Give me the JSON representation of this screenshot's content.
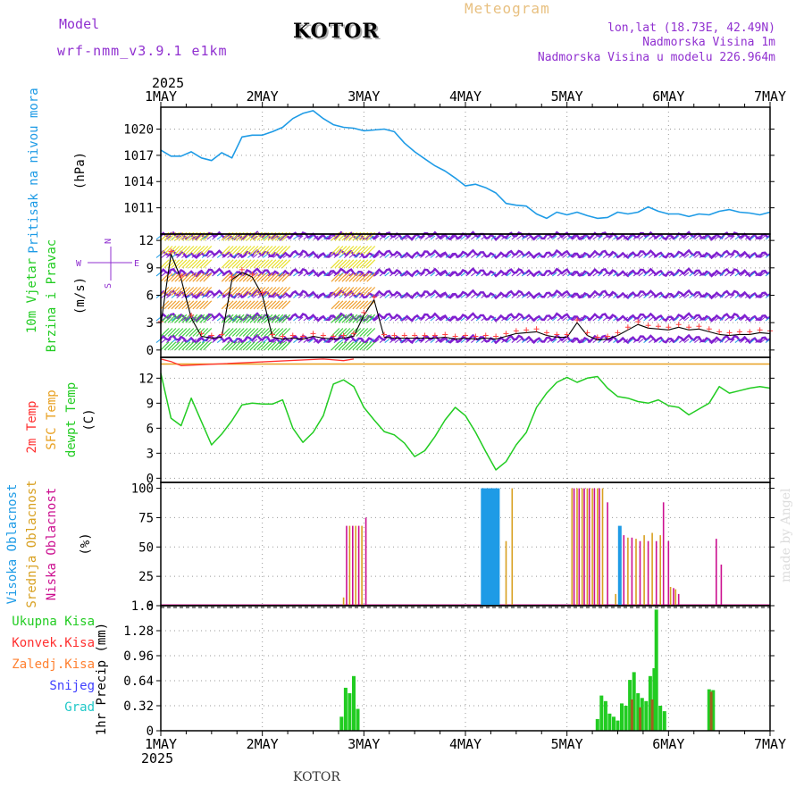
{
  "header": {
    "model_label": "Model",
    "model_value": "wrf-nmm_v3.9.1  e1km",
    "title": "KOTOR",
    "meteogram": "Meteogram",
    "lonlat": "lon,lat (18.73E, 42.49N)",
    "elevation": "Nadmorska Visina 1m",
    "model_elevation": "Nadmorska Visina u modelu 226.964m",
    "year_top": "2025",
    "year_bottom": "2025",
    "footer": "KOTOR",
    "credit": "made by Angel"
  },
  "colors": {
    "pressure": "#1e9be6",
    "temp_2m": "#ff3030",
    "temp_sfc": "#e8a020",
    "dewpoint": "#22cc22",
    "cloud_high": "#1e9be6",
    "cloud_mid": "#d8a020",
    "cloud_low": "#cc1090",
    "precip_total": "#22cc22",
    "precip_conv": "#ff3030",
    "precip_frozen": "#ff8030",
    "precip_snow": "#4040ff",
    "precip_graupel": "#20c8c8",
    "wind_isotach": "#8020d0",
    "title_purple": "#9030d0",
    "meteogram_orange": "#e8c080"
  },
  "chart_data": [
    {
      "type": "line",
      "panel": "pressure",
      "ylabel_series": "Pritisak na nivou mora",
      "ylabel_unit": "(hPa)",
      "ylim": [
        1008,
        1022.5
      ],
      "yticks": [
        "1011",
        "1014",
        "1017",
        "1020"
      ],
      "x": [
        0,
        0.1,
        0.2,
        0.3,
        0.4,
        0.5,
        0.6,
        0.7,
        0.8,
        0.9,
        1.0,
        1.1,
        1.2,
        1.3,
        1.4,
        1.5,
        1.6,
        1.7,
        1.8,
        1.9,
        2.0,
        2.1,
        2.2,
        2.3,
        2.4,
        2.5,
        2.6,
        2.7,
        2.8,
        2.9,
        3.0,
        3.1,
        3.2,
        3.3,
        3.4,
        3.5,
        3.6,
        3.7,
        3.8,
        3.9,
        4.0,
        4.1,
        4.2,
        4.3,
        4.4,
        4.5,
        4.6,
        4.7,
        4.8,
        4.9,
        5.0,
        5.1,
        5.2,
        5.3,
        5.4,
        5.5,
        5.6,
        5.7,
        5.8,
        5.9,
        6.0
      ],
      "values": [
        1017.6,
        1016.9,
        1016.9,
        1017.4,
        1016.7,
        1016.4,
        1017.3,
        1016.7,
        1019.1,
        1019.3,
        1019.3,
        1019.7,
        1020.2,
        1021.2,
        1021.8,
        1022.1,
        1021.2,
        1020.5,
        1020.2,
        1020.1,
        1019.8,
        1019.9,
        1020.0,
        1019.7,
        1018.4,
        1017.4,
        1016.6,
        1015.8,
        1015.2,
        1014.4,
        1013.5,
        1013.7,
        1013.3,
        1012.7,
        1011.5,
        1011.3,
        1011.2,
        1010.3,
        1009.8,
        1010.5,
        1010.2,
        1010.5,
        1010.1,
        1009.8,
        1009.9,
        1010.5,
        1010.3,
        1010.5,
        1011.1,
        1010.6,
        1010.3,
        1010.3,
        1010.0,
        1010.3,
        1010.2,
        1010.6,
        1010.8,
        1010.5,
        1010.4,
        1010.2,
        1010.5
      ]
    },
    {
      "type": "line",
      "panel": "wind",
      "ylabel_series_1": "10m Vjetar",
      "ylabel_series_2": "Brzina i Pravac",
      "ylabel_unit": "(m/s)",
      "compass_n": "N",
      "compass_s": "S",
      "compass_w": "W",
      "compass_e": "E",
      "ylim": [
        -0.8,
        12.7
      ],
      "yticks": [
        "0",
        "3",
        "6",
        "9",
        "12"
      ],
      "isotach_levels": [
        1.2,
        3.6,
        6.1,
        8.5,
        10.5,
        12.5
      ],
      "x": [
        0,
        0.1,
        0.2,
        0.3,
        0.4,
        0.5,
        0.6,
        0.7,
        0.8,
        0.9,
        1.0,
        1.1,
        1.2,
        1.3,
        1.4,
        1.5,
        1.6,
        1.7,
        1.8,
        1.9,
        2.0,
        2.1,
        2.2,
        2.3,
        2.4,
        2.5,
        2.6,
        2.7,
        2.8,
        2.9,
        3.0,
        3.1,
        3.2,
        3.3,
        3.4,
        3.5,
        3.6,
        3.7,
        3.8,
        3.9,
        4.0,
        4.1,
        4.2,
        4.3,
        4.4,
        4.5,
        4.6,
        4.7,
        4.8,
        4.9,
        5.0,
        5.1,
        5.2,
        5.3,
        5.4,
        5.5,
        5.6,
        5.7,
        5.8,
        5.9,
        6.0
      ],
      "speed": [
        2.8,
        10.5,
        7.8,
        3.5,
        1.5,
        1.3,
        1.4,
        7.7,
        8.5,
        8.0,
        6.0,
        1.4,
        1.2,
        1.3,
        1.2,
        1.5,
        1.3,
        1.2,
        1.3,
        1.5,
        3.8,
        5.5,
        1.4,
        1.3,
        1.3,
        1.3,
        1.3,
        1.3,
        1.4,
        1.2,
        1.3,
        1.2,
        1.3,
        1.2,
        1.5,
        1.8,
        1.9,
        2.0,
        1.6,
        1.4,
        1.4,
        3.0,
        1.6,
        1.1,
        1.2,
        1.6,
        2.2,
        2.8,
        2.4,
        2.3,
        2.2,
        2.5,
        2.2,
        2.3,
        2.0,
        1.7,
        1.6,
        1.7,
        1.7,
        1.9,
        1.8
      ]
    },
    {
      "type": "line",
      "panel": "temperature",
      "ylabel_series_1": "2m Temp",
      "ylabel_series_2": "SFC Temp",
      "ylabel_series_3": "dewpt Temp",
      "ylabel_unit": "(C)",
      "ylim": [
        -0.5,
        14.5
      ],
      "yticks": [
        "0",
        "3",
        "6",
        "9",
        "12"
      ],
      "sfc_temp": 13.7,
      "t2m_x": [
        0,
        0.1,
        0.2,
        1.6,
        1.8,
        1.9
      ],
      "t2m_values": [
        14.3,
        14.0,
        13.5,
        14.3,
        14.1,
        14.3
      ],
      "x": [
        0,
        0.1,
        0.2,
        0.3,
        0.4,
        0.5,
        0.6,
        0.7,
        0.8,
        0.9,
        1.0,
        1.1,
        1.2,
        1.3,
        1.4,
        1.5,
        1.6,
        1.7,
        1.8,
        1.9,
        2.0,
        2.1,
        2.2,
        2.3,
        2.4,
        2.5,
        2.6,
        2.7,
        2.8,
        2.9,
        3.0,
        3.1,
        3.2,
        3.3,
        3.4,
        3.5,
        3.6,
        3.7,
        3.8,
        3.9,
        4.0,
        4.1,
        4.2,
        4.3,
        4.4,
        4.5,
        4.6,
        4.7,
        4.8,
        4.9,
        5.0,
        5.1,
        5.2,
        5.3,
        5.4,
        5.5,
        5.6,
        5.7,
        5.8,
        5.9,
        6.0
      ],
      "values": [
        12.6,
        7.2,
        6.3,
        9.6,
        6.8,
        4.0,
        5.3,
        6.9,
        8.8,
        9.0,
        8.9,
        8.9,
        9.4,
        6.0,
        4.3,
        5.5,
        7.5,
        11.3,
        11.8,
        11.0,
        8.5,
        7.0,
        5.6,
        5.2,
        4.2,
        2.6,
        3.3,
        5.0,
        7.0,
        8.5,
        7.5,
        5.5,
        3.2,
        1.0,
        2.0,
        4.0,
        5.5,
        8.5,
        10.2,
        11.5,
        12.1,
        11.5,
        12.0,
        12.2,
        10.8,
        9.8,
        9.6,
        9.2,
        9.0,
        9.4,
        8.7,
        8.5,
        7.6,
        8.3,
        9.0,
        11.0,
        10.2,
        10.5,
        10.8,
        11.0,
        10.8
      ]
    },
    {
      "type": "bar",
      "panel": "cloud",
      "ylabel_series_1": "Visoka Oblacnost",
      "ylabel_series_2": "Srednja Oblacnost",
      "ylabel_series_3": "Niska Oblacnost",
      "ylabel_unit": "(%)",
      "ylim": [
        0,
        105
      ],
      "yticks": [
        "0",
        "25",
        "50",
        "75",
        "100"
      ],
      "high": [
        {
          "x": 3.17,
          "v": 100
        },
        {
          "x": 3.2,
          "v": 100
        },
        {
          "x": 3.23,
          "v": 100
        },
        {
          "x": 3.26,
          "v": 100
        },
        {
          "x": 3.29,
          "v": 100
        },
        {
          "x": 3.32,
          "v": 100
        },
        {
          "x": 4.52,
          "v": 68
        }
      ],
      "mid": [
        {
          "x": 1.8,
          "v": 7
        },
        {
          "x": 1.86,
          "v": 68
        },
        {
          "x": 1.92,
          "v": 68
        },
        {
          "x": 1.98,
          "v": 68
        },
        {
          "x": 3.4,
          "v": 55
        },
        {
          "x": 3.46,
          "v": 100
        },
        {
          "x": 4.05,
          "v": 100
        },
        {
          "x": 4.1,
          "v": 100
        },
        {
          "x": 4.15,
          "v": 100
        },
        {
          "x": 4.2,
          "v": 100
        },
        {
          "x": 4.25,
          "v": 100
        },
        {
          "x": 4.3,
          "v": 100
        },
        {
          "x": 4.35,
          "v": 100
        },
        {
          "x": 4.48,
          "v": 10
        },
        {
          "x": 4.6,
          "v": 58
        },
        {
          "x": 4.68,
          "v": 57
        },
        {
          "x": 4.76,
          "v": 60
        },
        {
          "x": 4.84,
          "v": 62
        },
        {
          "x": 4.92,
          "v": 60
        },
        {
          "x": 5.02,
          "v": 16
        },
        {
          "x": 5.07,
          "v": 14
        }
      ],
      "low": [
        {
          "x": 1.83,
          "v": 68
        },
        {
          "x": 1.89,
          "v": 68
        },
        {
          "x": 1.95,
          "v": 68
        },
        {
          "x": 2.02,
          "v": 75
        },
        {
          "x": 4.07,
          "v": 100
        },
        {
          "x": 4.12,
          "v": 100
        },
        {
          "x": 4.17,
          "v": 100
        },
        {
          "x": 4.22,
          "v": 100
        },
        {
          "x": 4.27,
          "v": 100
        },
        {
          "x": 4.32,
          "v": 100
        },
        {
          "x": 4.4,
          "v": 88
        },
        {
          "x": 4.56,
          "v": 60
        },
        {
          "x": 4.64,
          "v": 58
        },
        {
          "x": 4.72,
          "v": 55
        },
        {
          "x": 4.8,
          "v": 55
        },
        {
          "x": 4.88,
          "v": 55
        },
        {
          "x": 4.95,
          "v": 88
        },
        {
          "x": 5.0,
          "v": 55
        },
        {
          "x": 5.05,
          "v": 15
        },
        {
          "x": 5.1,
          "v": 10
        },
        {
          "x": 5.47,
          "v": 57
        },
        {
          "x": 5.52,
          "v": 35
        }
      ]
    },
    {
      "type": "bar",
      "panel": "precipitation",
      "legend": [
        "Ukupna Kisa",
        "Konvek.Kisa",
        "Zaledj.Kisa",
        "Snijeg",
        "Grad"
      ],
      "ylabel": "1hr Precip (mm)",
      "ylim": [
        0,
        1.6
      ],
      "yticks": [
        "0",
        "0.32",
        "0.64",
        "0.96",
        "1.28",
        "1.6"
      ],
      "total": [
        {
          "x": 1.78,
          "v": 0.18
        },
        {
          "x": 1.82,
          "v": 0.55
        },
        {
          "x": 1.86,
          "v": 0.48
        },
        {
          "x": 1.9,
          "v": 0.7
        },
        {
          "x": 1.94,
          "v": 0.28
        },
        {
          "x": 4.3,
          "v": 0.15
        },
        {
          "x": 4.34,
          "v": 0.45
        },
        {
          "x": 4.38,
          "v": 0.38
        },
        {
          "x": 4.42,
          "v": 0.22
        },
        {
          "x": 4.46,
          "v": 0.18
        },
        {
          "x": 4.5,
          "v": 0.13
        },
        {
          "x": 4.54,
          "v": 0.35
        },
        {
          "x": 4.58,
          "v": 0.32
        },
        {
          "x": 4.62,
          "v": 0.65
        },
        {
          "x": 4.66,
          "v": 0.75
        },
        {
          "x": 4.7,
          "v": 0.48
        },
        {
          "x": 4.74,
          "v": 0.42
        },
        {
          "x": 4.78,
          "v": 0.38
        },
        {
          "x": 4.82,
          "v": 0.7
        },
        {
          "x": 4.86,
          "v": 0.8
        },
        {
          "x": 4.88,
          "v": 1.55
        },
        {
          "x": 4.92,
          "v": 0.32
        },
        {
          "x": 4.96,
          "v": 0.25
        },
        {
          "x": 5.4,
          "v": 0.53
        },
        {
          "x": 5.44,
          "v": 0.52
        }
      ],
      "convective": [
        {
          "x": 4.64,
          "v": 0.4
        },
        {
          "x": 4.72,
          "v": 0.3
        },
        {
          "x": 4.84,
          "v": 0.4
        },
        {
          "x": 5.42,
          "v": 0.5
        }
      ]
    }
  ],
  "xaxis": {
    "days": [
      "1MAY",
      "2MAY",
      "3MAY",
      "4MAY",
      "5MAY",
      "6MAY",
      "7MAY"
    ]
  }
}
